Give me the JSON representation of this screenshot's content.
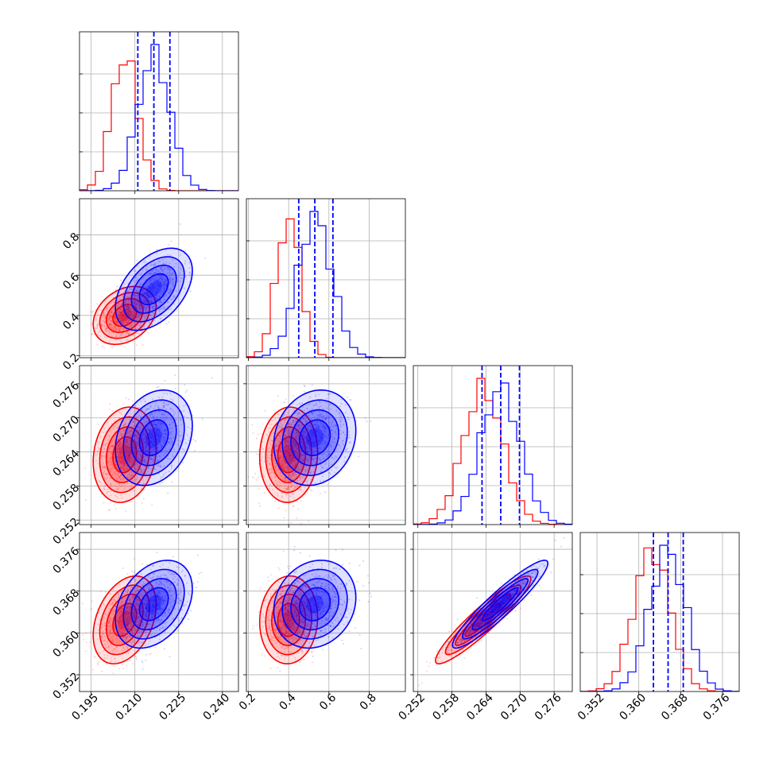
{
  "chart_data": {
    "type": "corner",
    "colors": {
      "red": "#ff0000",
      "blue": "#0000ff"
    },
    "grid": true,
    "series": [
      {
        "color": "red",
        "mean": [
          0.2065,
          0.4,
          0.2635,
          0.3625
        ],
        "sigma": [
          0.0045,
          0.06,
          0.0035,
          0.0035
        ],
        "rho": [
          [
            1,
            0.3,
            0.15,
            0.35
          ],
          [
            0.3,
            1,
            0.05,
            0.05
          ],
          [
            0.15,
            0.05,
            1,
            0.93
          ],
          [
            0.35,
            0.05,
            0.93,
            1
          ]
        ]
      },
      {
        "color": "blue",
        "mean": [
          0.2165,
          0.53,
          0.2665,
          0.3655
        ],
        "sigma": [
          0.0055,
          0.085,
          0.0035,
          0.0035
        ],
        "rho": [
          [
            1,
            0.45,
            0.25,
            0.35
          ],
          [
            0.45,
            1,
            0.15,
            0.15
          ],
          [
            0.25,
            0.15,
            1,
            0.93
          ],
          [
            0.35,
            0.15,
            0.93,
            1
          ]
        ]
      }
    ],
    "quantile_lines": {
      "color": "blue",
      "params": [
        [
          0.211,
          0.2165,
          0.222
        ],
        [
          0.45,
          0.53,
          0.62
        ],
        [
          0.2633,
          0.2666,
          0.2699
        ],
        [
          0.3628,
          0.3656,
          0.3685
        ]
      ]
    },
    "params": [
      {
        "range": [
          0.191,
          0.2455
        ],
        "ticks": [
          0.195,
          0.21,
          0.225,
          0.24
        ],
        "tick_labels": [
          "0.195",
          "0.210",
          "0.225",
          "0.240"
        ]
      },
      {
        "range": [
          0.19,
          0.98
        ],
        "ticks": [
          0.2,
          0.4,
          0.6,
          0.8
        ],
        "tick_labels": [
          "0.2",
          "0.4",
          "0.6",
          "0.8"
        ]
      },
      {
        "range": [
          0.2512,
          0.2792
        ],
        "ticks": [
          0.252,
          0.258,
          0.264,
          0.27,
          0.276
        ],
        "tick_labels": [
          "0.252",
          "0.258",
          "0.264",
          "0.270",
          "0.276"
        ]
      },
      {
        "range": [
          0.3488,
          0.3792
        ],
        "ticks": [
          0.352,
          0.36,
          0.368,
          0.376
        ],
        "tick_labels": [
          "0.352",
          "0.360",
          "0.368",
          "0.376"
        ]
      }
    ]
  }
}
